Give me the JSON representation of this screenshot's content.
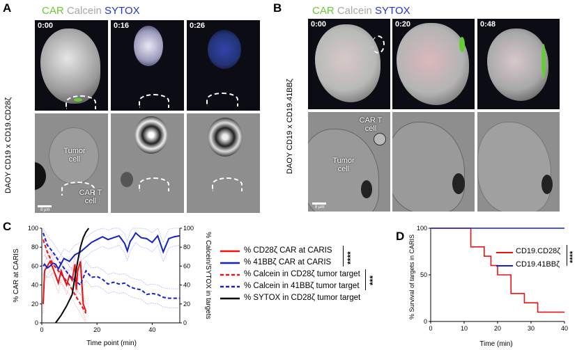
{
  "panel_a": {
    "letter": "A",
    "header": {
      "car": "CAR",
      "calcein": "Calcein",
      "sytox": "SYTOX"
    },
    "row_label": "DAOY CD19 x CD19.CD28ζ",
    "timestamps": [
      "0:00",
      "0:16",
      "0:26"
    ],
    "tumor_label_1": "Tumor",
    "tumor_label_2": "cell",
    "cart_label_1": "CAR T",
    "cart_label_2": "cell",
    "scale": "8 µm"
  },
  "panel_b": {
    "letter": "B",
    "header": {
      "car": "CAR",
      "calcein": "Calcein",
      "sytox": "SYTOX"
    },
    "row_label": "DAOY CD19 x CD19.41BBζ",
    "timestamps": [
      "0:00",
      "0:20",
      "0:48"
    ],
    "cart_label_1": "CAR T",
    "cart_label_2": "cell",
    "tumor_label_1": "Tumor",
    "tumor_label_2": "cell",
    "scale": "8 µm"
  },
  "colors": {
    "car_green": "#66cc33",
    "calcein_grey": "#b0b0b0",
    "sytox_blue": "#2233cc",
    "cd28_red": "#ee1111",
    "bb41_blue": "#1122cc",
    "sytox_black": "#000000"
  },
  "panel_c": {
    "letter": "C",
    "legend": [
      {
        "label": "% CD28ζ CAR at CARIS",
        "color": "#ee1111",
        "dash": false
      },
      {
        "label": "% 41BBζ CAR at CARIS",
        "color": "#1122cc",
        "dash": false
      },
      {
        "label": "% Calcein in CD28ζ tumor target",
        "color": "#ee1111",
        "dash": true
      },
      {
        "label": "% Calcein in 41BBζ tumor target",
        "color": "#1122cc",
        "dash": true
      },
      {
        "label": "% SYTOX in CD28ζ tumor target",
        "color": "#000000",
        "dash": false
      }
    ],
    "sig_car": "****",
    "sig_calcein": "***"
  },
  "panel_d": {
    "letter": "D",
    "sig": "****"
  },
  "chart_data": [
    {
      "type": "line",
      "xlabel": "Time point (min)",
      "ylabel": "% CAR at CARIS",
      "y2label": "% Calcein/SYTOX in targets",
      "xlim": [
        0,
        50
      ],
      "ylim": [
        0,
        100
      ],
      "y2lim": [
        0,
        100
      ],
      "xticks": [
        0,
        20,
        40
      ],
      "yticks": [
        0,
        20,
        40,
        60,
        80,
        100
      ],
      "y2ticks": [
        0,
        20,
        40,
        60,
        80,
        100
      ],
      "series": [
        {
          "name": "% CD28ζ CAR at CARIS",
          "axis": "left",
          "color": "#ee1111",
          "dash": false,
          "x": [
            0.5,
            1,
            2,
            3,
            4,
            5,
            6,
            7,
            8,
            9,
            10,
            11,
            12,
            12.5,
            13,
            14,
            15,
            16
          ],
          "y": [
            20,
            55,
            60,
            65,
            58,
            50,
            42,
            55,
            47,
            40,
            50,
            45,
            62,
            35,
            55,
            65,
            20,
            12
          ]
        },
        {
          "name": "% 41BBζ CAR at CARIS",
          "axis": "left",
          "color": "#1122cc",
          "dash": false,
          "x": [
            0.5,
            1,
            2,
            3,
            4,
            5,
            6,
            8,
            10,
            12,
            14,
            16,
            18,
            20,
            22,
            24,
            26,
            28,
            30,
            31,
            32,
            33,
            34,
            36,
            38,
            40,
            42,
            44,
            46,
            48,
            50
          ],
          "y": [
            60,
            62,
            58,
            60,
            63,
            62,
            57,
            68,
            65,
            72,
            75,
            80,
            85,
            88,
            91,
            88,
            90,
            92,
            84,
            76,
            86,
            90,
            95,
            90,
            89,
            85,
            92,
            75,
            89,
            91,
            92
          ]
        },
        {
          "name": "% Calcein in CD28ζ tumor target",
          "axis": "right",
          "color": "#ee1111",
          "dash": true,
          "x": [
            0.5,
            2,
            4,
            6,
            8,
            10,
            12,
            14,
            16
          ],
          "y": [
            88,
            75,
            62,
            55,
            48,
            40,
            30,
            20,
            10
          ]
        },
        {
          "name": "% Calcein in 41BBζ tumor target",
          "axis": "right",
          "color": "#1122cc",
          "dash": true,
          "x": [
            0.5,
            2,
            4,
            6,
            8,
            10,
            12,
            14,
            16,
            18,
            20,
            22,
            24,
            26,
            28,
            30,
            32,
            34,
            36,
            38,
            40,
            42,
            44,
            46,
            48,
            50
          ],
          "y": [
            95,
            82,
            75,
            66,
            58,
            50,
            45,
            40,
            55,
            48,
            49,
            46,
            41,
            43,
            41,
            42,
            38,
            36,
            35,
            30,
            31,
            30,
            27,
            26,
            26,
            26
          ]
        },
        {
          "name": "% SYTOX in CD28ζ tumor target",
          "axis": "right",
          "color": "#000000",
          "dash": false,
          "x": [
            5,
            7,
            9,
            11,
            12,
            13,
            14,
            15,
            16,
            17
          ],
          "y": [
            0,
            8,
            18,
            30,
            48,
            65,
            80,
            90,
            96,
            100
          ]
        }
      ]
    },
    {
      "type": "line",
      "xlabel": "Time (min)",
      "ylabel": "% Survival of targets in CARIS",
      "xlim": [
        0,
        40
      ],
      "ylim": [
        0,
        100
      ],
      "xticks": [
        0,
        10,
        20,
        30,
        40
      ],
      "yticks": [
        0,
        50,
        100
      ],
      "step": true,
      "series": [
        {
          "name": "CD19.CD28ζ",
          "color": "#ee1111",
          "x": [
            0,
            12,
            12,
            14,
            14,
            16,
            16,
            18,
            18,
            20,
            20,
            24,
            24,
            26,
            26,
            28,
            28,
            32,
            32,
            40
          ],
          "y": [
            100,
            100,
            80,
            80,
            80,
            80,
            70,
            70,
            60,
            60,
            50,
            50,
            30,
            30,
            30,
            30,
            20,
            20,
            10,
            10
          ]
        },
        {
          "name": "CD19.41BBζ",
          "color": "#1122cc",
          "x": [
            0,
            40
          ],
          "y": [
            100,
            100
          ]
        }
      ]
    }
  ]
}
